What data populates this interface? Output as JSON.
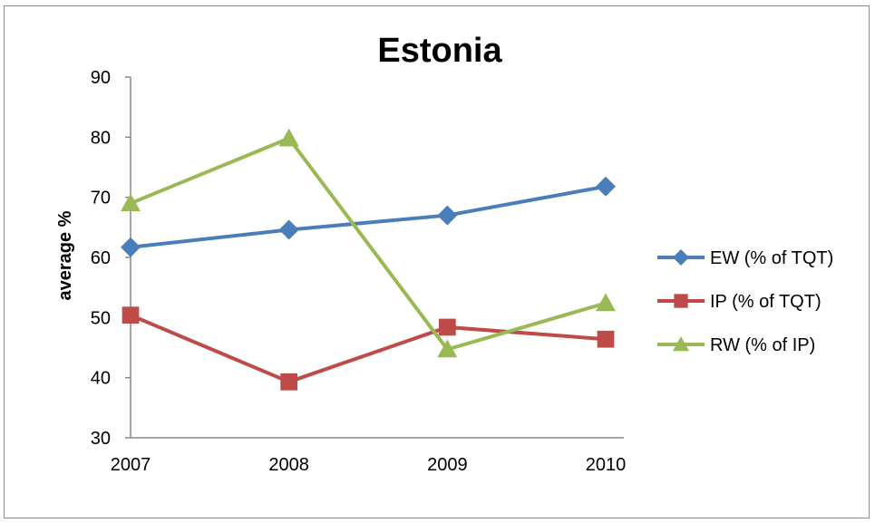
{
  "chart_data": {
    "type": "line",
    "title": "Estonia",
    "xlabel": "",
    "ylabel": "average %",
    "categories": [
      "2007",
      "2008",
      "2009",
      "2010"
    ],
    "ylim": [
      30,
      90
    ],
    "yticks": [
      "30",
      "40",
      "50",
      "60",
      "70",
      "80",
      "90"
    ],
    "grid": false,
    "legend_position": "right",
    "series": [
      {
        "name": "EW (% of TQT)",
        "color": "#4a7ebb",
        "marker": "diamond",
        "values": [
          61.7,
          64.6,
          67.0,
          71.8
        ]
      },
      {
        "name": "IP (% of TQT)",
        "color": "#be4b48",
        "marker": "square",
        "values": [
          50.4,
          39.3,
          48.4,
          46.4
        ]
      },
      {
        "name": "RW (% of IP)",
        "color": "#98b954",
        "marker": "triangle",
        "values": [
          69.0,
          79.8,
          44.7,
          52.4
        ]
      }
    ]
  }
}
